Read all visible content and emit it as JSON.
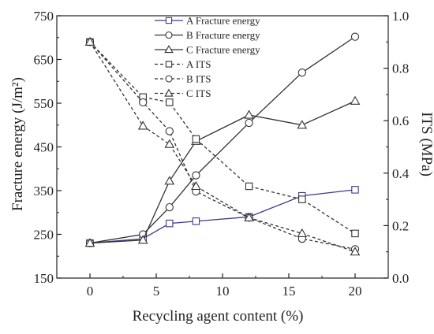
{
  "chart_data": {
    "type": "line",
    "xlabel": "Recycling agent content (%)",
    "ylabel_left": "Fracture energy (J/m²)",
    "ylabel_right": "ITS (MPa)",
    "xlim": [
      -2.5,
      22.5
    ],
    "ylim_left": [
      150,
      750
    ],
    "ylim_right": [
      0.0,
      1.0
    ],
    "x_ticks": [
      0,
      5,
      10,
      15,
      20
    ],
    "y_left_ticks": [
      150,
      250,
      350,
      450,
      550,
      650,
      750
    ],
    "y_right_ticks": [
      0.0,
      0.2,
      0.4,
      0.6,
      0.8,
      1.0
    ],
    "x_tick_labels": [
      "0",
      "5",
      "10",
      "15",
      "20"
    ],
    "y_left_tick_labels": [
      "150",
      "250",
      "350",
      "450",
      "550",
      "650",
      "750"
    ],
    "y_right_tick_labels": [
      "0.0",
      "0.2",
      "0.4",
      "0.6",
      "0.8",
      "1.0"
    ],
    "legend_position": "top-center",
    "grid": false,
    "series": [
      {
        "name": "A Fracture energy",
        "axis": "left",
        "style": "solid",
        "marker": "square",
        "color": "#3a3a8c",
        "x": [
          0,
          4,
          6,
          8,
          12,
          16,
          20
        ],
        "values": [
          230,
          240,
          275,
          280,
          290,
          338,
          352
        ]
      },
      {
        "name": "B Fracture energy",
        "axis": "left",
        "style": "solid",
        "marker": "circle",
        "color": "#333333",
        "x": [
          0,
          4,
          6,
          8,
          12,
          16,
          20
        ],
        "values": [
          230,
          250,
          312,
          385,
          505,
          620,
          702
        ]
      },
      {
        "name": "C Fracture energy",
        "axis": "left",
        "style": "solid",
        "marker": "triangle",
        "color": "#333333",
        "x": [
          0,
          4,
          6,
          8,
          12,
          16,
          20
        ],
        "values": [
          230,
          237,
          372,
          463,
          523,
          500,
          555
        ]
      },
      {
        "name": "A ITS",
        "axis": "right",
        "style": "dashed",
        "marker": "square",
        "color": "#333333",
        "x": [
          0,
          4,
          6,
          8,
          12,
          16,
          20
        ],
        "values": [
          0.9,
          0.69,
          0.67,
          0.53,
          0.35,
          0.3,
          0.17
        ]
      },
      {
        "name": "B ITS",
        "axis": "right",
        "style": "dashed",
        "marker": "circle",
        "color": "#333333",
        "x": [
          0,
          4,
          6,
          8,
          12,
          16,
          20
        ],
        "values": [
          0.9,
          0.67,
          0.56,
          0.33,
          0.23,
          0.15,
          0.11
        ]
      },
      {
        "name": "C ITS",
        "axis": "right",
        "style": "dashed",
        "marker": "triangle",
        "color": "#333333",
        "x": [
          0,
          4,
          6,
          8,
          12,
          16,
          20
        ],
        "values": [
          0.9,
          0.58,
          0.51,
          0.35,
          0.23,
          0.17,
          0.1
        ]
      }
    ]
  }
}
